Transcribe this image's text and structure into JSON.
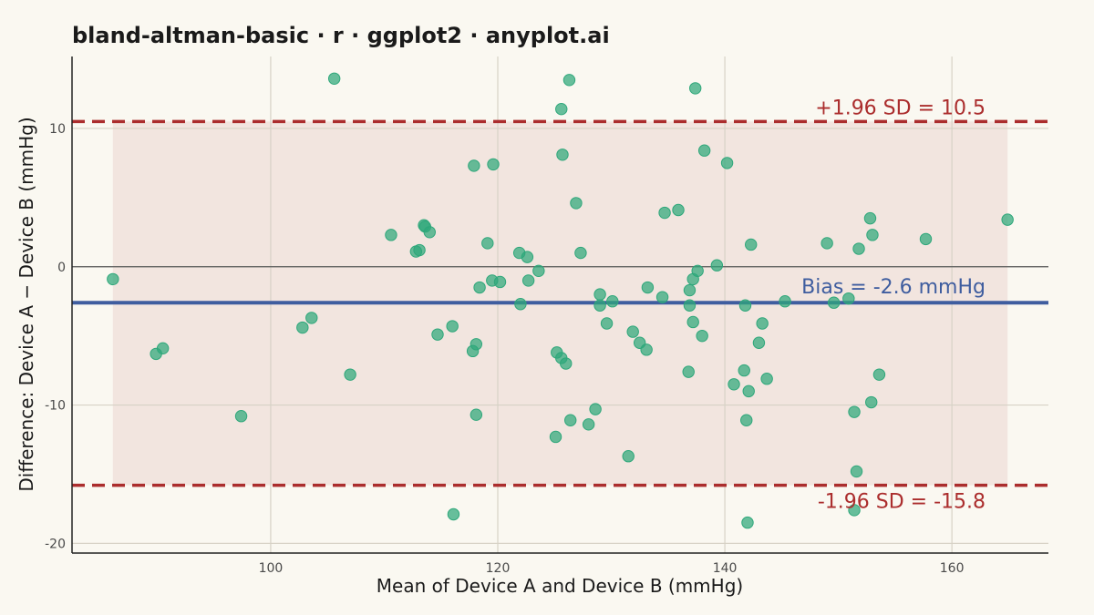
{
  "chart_data": {
    "type": "scatter",
    "title": "bland-altman-basic · r · ggplot2 · anyplot.ai",
    "xlabel": "Mean of Device A and Device B (mmHg)",
    "ylabel": "Difference: Device A − Device B (mmHg)",
    "xlim": [
      82.5,
      168.5
    ],
    "ylim": [
      -20.7,
      15.2
    ],
    "x_ticks": [
      100,
      120,
      140,
      160
    ],
    "y_ticks": [
      -20,
      -10,
      0,
      10
    ],
    "x_tick_labels": [
      "100",
      "120",
      "140",
      "160"
    ],
    "y_tick_labels": [
      "-20",
      "-10",
      "0",
      "10"
    ],
    "grid": true,
    "bias": -2.6,
    "upper_loa": 10.5,
    "lower_loa": -15.8,
    "band_x_range": [
      86.1,
      164.9
    ],
    "annotations": {
      "upper": "+1.96 SD = 10.5",
      "bias": "Bias = -2.6 mmHg",
      "lower": "-1.96 SD = -15.8"
    },
    "colors": {
      "points": "#2EA77A",
      "bias_line": "#3F5D9F",
      "loa_line": "#AB2D2D",
      "band": "#F2E5DF",
      "zero_line": "#5A5A5A",
      "grid": "#D7D2C6",
      "axis": "#222222"
    },
    "points": [
      {
        "x": 86.1,
        "y": -0.9
      },
      {
        "x": 89.9,
        "y": -6.3
      },
      {
        "x": 90.5,
        "y": -5.9
      },
      {
        "x": 97.4,
        "y": -10.8
      },
      {
        "x": 102.8,
        "y": -4.4
      },
      {
        "x": 103.6,
        "y": -3.7
      },
      {
        "x": 105.6,
        "y": 13.6
      },
      {
        "x": 107.0,
        "y": -7.8
      },
      {
        "x": 110.6,
        "y": 2.3
      },
      {
        "x": 112.8,
        "y": 1.1
      },
      {
        "x": 113.1,
        "y": 1.2
      },
      {
        "x": 113.5,
        "y": 3.0
      },
      {
        "x": 113.6,
        "y": 2.9
      },
      {
        "x": 114.0,
        "y": 2.5
      },
      {
        "x": 114.7,
        "y": -4.9
      },
      {
        "x": 116.0,
        "y": -4.3
      },
      {
        "x": 116.1,
        "y": -17.9
      },
      {
        "x": 117.8,
        "y": -6.1
      },
      {
        "x": 117.9,
        "y": 7.3
      },
      {
        "x": 118.1,
        "y": -5.6
      },
      {
        "x": 118.1,
        "y": -10.7
      },
      {
        "x": 118.4,
        "y": -1.5
      },
      {
        "x": 119.1,
        "y": 1.7
      },
      {
        "x": 119.5,
        "y": -1.0
      },
      {
        "x": 119.6,
        "y": 7.4
      },
      {
        "x": 120.2,
        "y": -1.1
      },
      {
        "x": 121.9,
        "y": 1.0
      },
      {
        "x": 122.0,
        "y": -2.7
      },
      {
        "x": 122.6,
        "y": 0.7
      },
      {
        "x": 122.7,
        "y": -1.0
      },
      {
        "x": 123.6,
        "y": -0.3
      },
      {
        "x": 125.1,
        "y": -12.3
      },
      {
        "x": 125.2,
        "y": -6.2
      },
      {
        "x": 125.6,
        "y": 11.4
      },
      {
        "x": 125.6,
        "y": -6.6
      },
      {
        "x": 125.7,
        "y": 8.1
      },
      {
        "x": 126.0,
        "y": -7.0
      },
      {
        "x": 126.3,
        "y": 13.5
      },
      {
        "x": 126.4,
        "y": -11.1
      },
      {
        "x": 126.9,
        "y": 4.6
      },
      {
        "x": 127.3,
        "y": 1.0
      },
      {
        "x": 128.0,
        "y": -11.4
      },
      {
        "x": 128.6,
        "y": -10.3
      },
      {
        "x": 129.0,
        "y": -2.0
      },
      {
        "x": 129.0,
        "y": -2.8
      },
      {
        "x": 129.6,
        "y": -4.1
      },
      {
        "x": 130.1,
        "y": -2.5
      },
      {
        "x": 131.5,
        "y": -13.7
      },
      {
        "x": 131.9,
        "y": -4.7
      },
      {
        "x": 132.5,
        "y": -5.5
      },
      {
        "x": 133.1,
        "y": -6.0
      },
      {
        "x": 133.2,
        "y": -1.5
      },
      {
        "x": 134.5,
        "y": -2.2
      },
      {
        "x": 134.7,
        "y": 3.9
      },
      {
        "x": 135.9,
        "y": 4.1
      },
      {
        "x": 136.8,
        "y": -7.6
      },
      {
        "x": 136.9,
        "y": -1.7
      },
      {
        "x": 136.9,
        "y": -2.8
      },
      {
        "x": 137.2,
        "y": -4.0
      },
      {
        "x": 137.2,
        "y": -0.9
      },
      {
        "x": 137.4,
        "y": 12.9
      },
      {
        "x": 137.6,
        "y": -0.3
      },
      {
        "x": 138.0,
        "y": -5.0
      },
      {
        "x": 138.2,
        "y": 8.4
      },
      {
        "x": 139.3,
        "y": 0.1
      },
      {
        "x": 140.2,
        "y": 7.5
      },
      {
        "x": 140.8,
        "y": -8.5
      },
      {
        "x": 141.7,
        "y": -7.5
      },
      {
        "x": 141.8,
        "y": -2.8
      },
      {
        "x": 141.9,
        "y": -11.1
      },
      {
        "x": 142.0,
        "y": -18.5
      },
      {
        "x": 142.1,
        "y": -9.0
      },
      {
        "x": 142.3,
        "y": 1.6
      },
      {
        "x": 143.0,
        "y": -5.5
      },
      {
        "x": 143.3,
        "y": -4.1
      },
      {
        "x": 143.7,
        "y": -8.1
      },
      {
        "x": 145.3,
        "y": -2.5
      },
      {
        "x": 149.0,
        "y": 1.7
      },
      {
        "x": 149.6,
        "y": -2.6
      },
      {
        "x": 150.9,
        "y": -2.3
      },
      {
        "x": 151.4,
        "y": -10.5
      },
      {
        "x": 151.4,
        "y": -17.6
      },
      {
        "x": 151.6,
        "y": -14.8
      },
      {
        "x": 151.8,
        "y": 1.3
      },
      {
        "x": 152.8,
        "y": 3.5
      },
      {
        "x": 152.9,
        "y": -9.8
      },
      {
        "x": 153.0,
        "y": 2.3
      },
      {
        "x": 153.6,
        "y": -7.8
      },
      {
        "x": 157.7,
        "y": 2.0
      },
      {
        "x": 164.9,
        "y": 3.4
      }
    ]
  }
}
